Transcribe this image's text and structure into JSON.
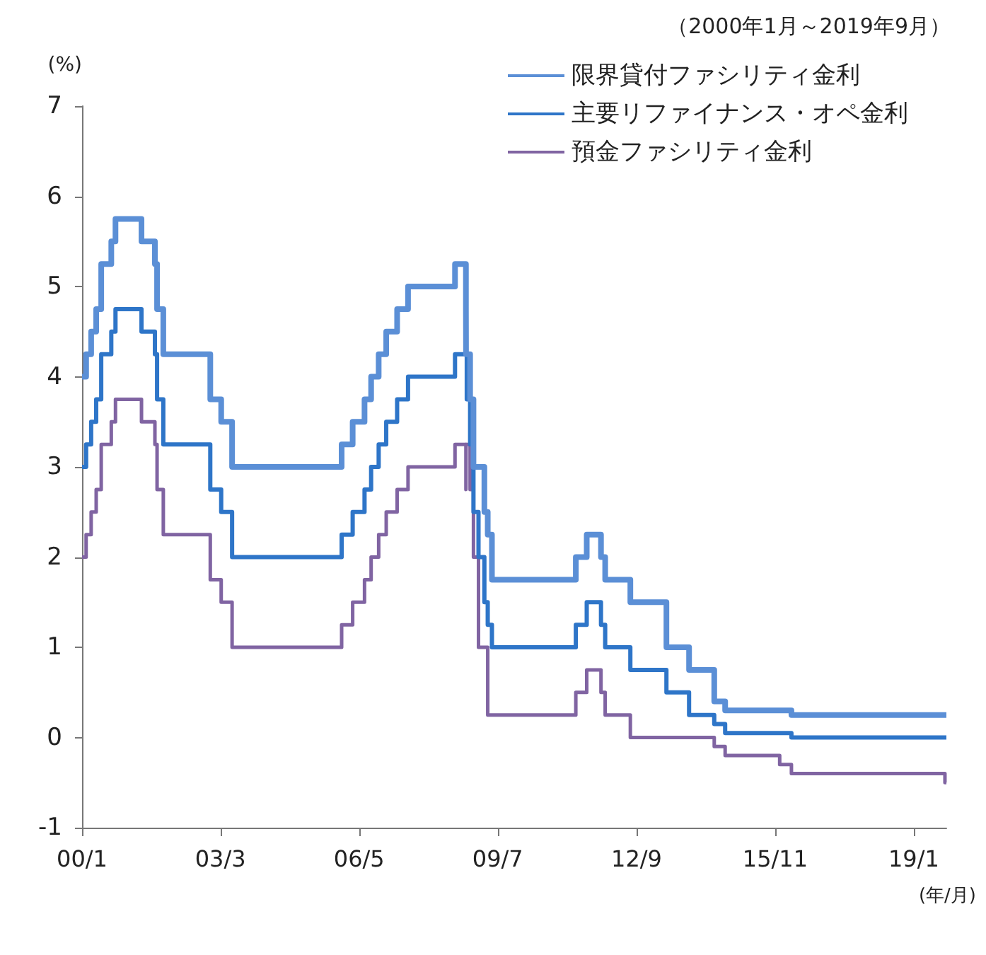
{
  "chart_data": {
    "type": "step",
    "subtitle": "（2000年1月～2019年9月）",
    "ylabel": "(%)",
    "xlabel": "(年/月)",
    "xlim": [
      "2000-01-01",
      "2019-09-30"
    ],
    "xticks": [
      {
        "value": "2000-01",
        "label": "00/1"
      },
      {
        "value": "2003-03",
        "label": "03/3"
      },
      {
        "value": "2006-05",
        "label": "06/5"
      },
      {
        "value": "2009-07",
        "label": "09/7"
      },
      {
        "value": "2012-09",
        "label": "12/9"
      },
      {
        "value": "2015-11",
        "label": "15/11"
      },
      {
        "value": "2019-01",
        "label": "19/1"
      }
    ],
    "ylim": [
      -1,
      7
    ],
    "yticks": [
      -1,
      0,
      1,
      2,
      3,
      4,
      5,
      6,
      7
    ],
    "grid": false,
    "legend": "top right",
    "series": [
      {
        "name": "限界貸付ファシリティ金利",
        "color": "#5b8fd6",
        "x": [
          "2000-01-01",
          "2000-02-04",
          "2000-03-17",
          "2000-04-28",
          "2000-06-09",
          "2000-09-01",
          "2000-10-06",
          "2001-05-11",
          "2001-08-31",
          "2001-09-18",
          "2001-11-09",
          "2002-12-06",
          "2003-03-07",
          "2003-06-06",
          "2005-12-06",
          "2006-03-08",
          "2006-06-15",
          "2006-08-09",
          "2006-10-11",
          "2006-12-13",
          "2007-03-14",
          "2007-06-13",
          "2008-07-09",
          "2008-10-08",
          "2008-10-09",
          "2008-11-12",
          "2008-12-10",
          "2009-03-11",
          "2009-04-08",
          "2009-05-13",
          "2011-04-13",
          "2011-07-13",
          "2011-11-09",
          "2011-12-14",
          "2012-07-11",
          "2013-05-08",
          "2013-11-13",
          "2014-06-11",
          "2014-09-10",
          "2016-03-16",
          "2019-09-30"
        ],
        "values": [
          4.0,
          4.25,
          4.5,
          4.75,
          5.25,
          5.5,
          5.75,
          5.5,
          5.25,
          4.75,
          4.25,
          3.75,
          3.5,
          3.0,
          3.25,
          3.5,
          3.75,
          4.0,
          4.25,
          4.5,
          4.75,
          5.0,
          5.25,
          4.75,
          4.25,
          3.75,
          3.0,
          2.5,
          2.25,
          1.75,
          2.0,
          2.25,
          2.0,
          1.75,
          1.5,
          1.0,
          0.75,
          0.4,
          0.3,
          0.25,
          0.25
        ]
      },
      {
        "name": "主要リファイナンス・オペ金利",
        "color": "#2e75c8",
        "x": [
          "2000-01-01",
          "2000-02-04",
          "2000-03-17",
          "2000-04-28",
          "2000-06-09",
          "2000-09-01",
          "2000-10-06",
          "2001-05-11",
          "2001-08-31",
          "2001-09-18",
          "2001-11-09",
          "2002-12-06",
          "2003-03-07",
          "2003-06-06",
          "2005-12-06",
          "2006-03-08",
          "2006-06-15",
          "2006-08-09",
          "2006-10-11",
          "2006-12-13",
          "2007-03-14",
          "2007-06-13",
          "2008-07-09",
          "2008-10-15",
          "2008-11-12",
          "2008-12-10",
          "2009-01-21",
          "2009-03-11",
          "2009-04-08",
          "2009-05-13",
          "2011-04-13",
          "2011-07-13",
          "2011-11-09",
          "2011-12-14",
          "2012-07-11",
          "2013-05-08",
          "2013-11-13",
          "2014-06-11",
          "2014-09-10",
          "2016-03-16",
          "2019-09-30"
        ],
        "values": [
          3.0,
          3.25,
          3.5,
          3.75,
          4.25,
          4.5,
          4.75,
          4.5,
          4.25,
          3.75,
          3.25,
          2.75,
          2.5,
          2.0,
          2.25,
          2.5,
          2.75,
          3.0,
          3.25,
          3.5,
          3.75,
          4.0,
          4.25,
          3.75,
          3.25,
          2.5,
          2.0,
          1.5,
          1.25,
          1.0,
          1.25,
          1.5,
          1.25,
          1.0,
          0.75,
          0.5,
          0.25,
          0.15,
          0.05,
          0.0,
          0.0
        ]
      },
      {
        "name": "預金ファシリティ金利",
        "color": "#8064a2",
        "x": [
          "2000-01-01",
          "2000-02-04",
          "2000-03-17",
          "2000-04-28",
          "2000-06-09",
          "2000-09-01",
          "2000-10-06",
          "2001-05-11",
          "2001-08-31",
          "2001-09-18",
          "2001-11-09",
          "2002-12-06",
          "2003-03-07",
          "2003-06-06",
          "2005-12-06",
          "2006-03-08",
          "2006-06-15",
          "2006-08-09",
          "2006-10-11",
          "2006-12-13",
          "2007-03-14",
          "2007-06-13",
          "2008-07-09",
          "2008-10-08",
          "2008-10-09",
          "2008-11-12",
          "2008-12-10",
          "2009-01-21",
          "2009-04-08",
          "2011-04-13",
          "2011-07-13",
          "2011-11-09",
          "2011-12-14",
          "2012-07-11",
          "2014-06-11",
          "2014-09-10",
          "2015-12-09",
          "2016-03-16",
          "2019-09-18",
          "2019-09-30"
        ],
        "values": [
          2.0,
          2.25,
          2.5,
          2.75,
          3.25,
          3.5,
          3.75,
          3.5,
          3.25,
          2.75,
          2.25,
          1.75,
          1.5,
          1.0,
          1.25,
          1.5,
          1.75,
          2.0,
          2.25,
          2.5,
          2.75,
          3.0,
          3.25,
          2.75,
          3.25,
          2.75,
          2.0,
          1.0,
          0.25,
          0.5,
          0.75,
          0.5,
          0.25,
          0.0,
          -0.1,
          -0.2,
          -0.3,
          -0.4,
          -0.5,
          -0.5
        ]
      }
    ]
  }
}
